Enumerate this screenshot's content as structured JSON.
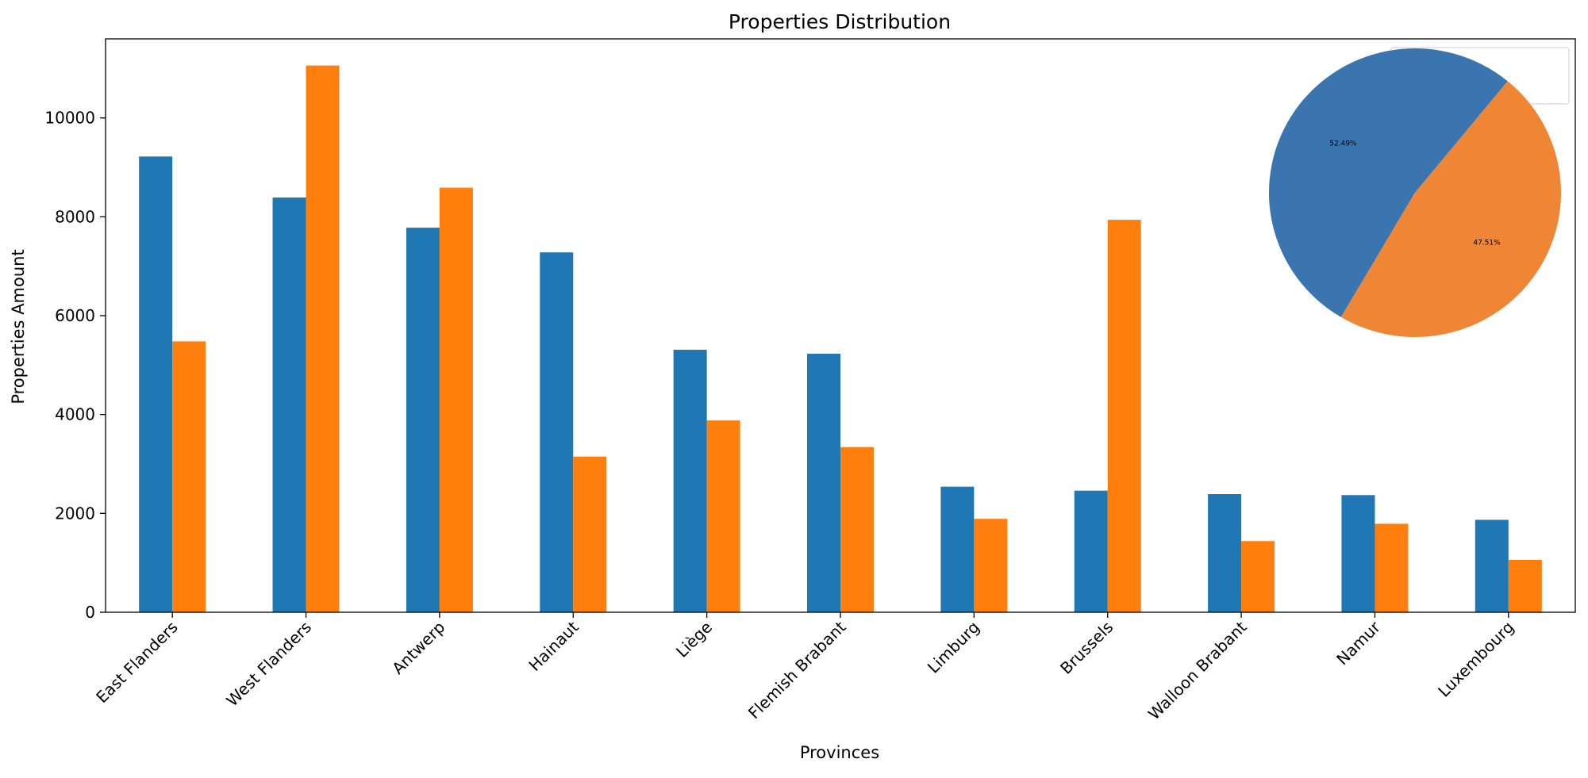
{
  "chart_data": [
    {
      "type": "bar",
      "title": "Properties Distribution",
      "xlabel": "Provinces",
      "ylabel": "Properties Amount",
      "categories": [
        "East Flanders",
        "West Flanders",
        "Antwerp",
        "Hainaut",
        "Liège",
        "Flemish Brabant",
        "Limburg",
        "Brussels",
        "Walloon Brabant",
        "Namur",
        "Luxembourg"
      ],
      "series": [
        {
          "values": [
            9220,
            8390,
            7780,
            7280,
            5310,
            5230,
            2540,
            2460,
            2390,
            2370,
            1870
          ]
        },
        {
          "values": [
            5480,
            11060,
            8590,
            3150,
            3880,
            3340,
            1890,
            7940,
            1440,
            1790,
            1060
          ]
        }
      ],
      "ylim": [
        0,
        11600
      ],
      "yticks": [
        0,
        2000,
        4000,
        6000,
        8000,
        10000
      ],
      "ytick_labels": [
        "0",
        "2000",
        "4000",
        "6000",
        "8000",
        "10000"
      ],
      "grid": false,
      "legend": "top-right (empty)",
      "colors": [
        "#1f77b4",
        "#ff7f0e"
      ]
    },
    {
      "type": "pie",
      "values": [
        52.49,
        47.51
      ],
      "labels": [
        "52.49%",
        "47.51%"
      ],
      "colors": [
        "#3b75af",
        "#ef8636"
      ],
      "position": "inset top-right"
    }
  ]
}
